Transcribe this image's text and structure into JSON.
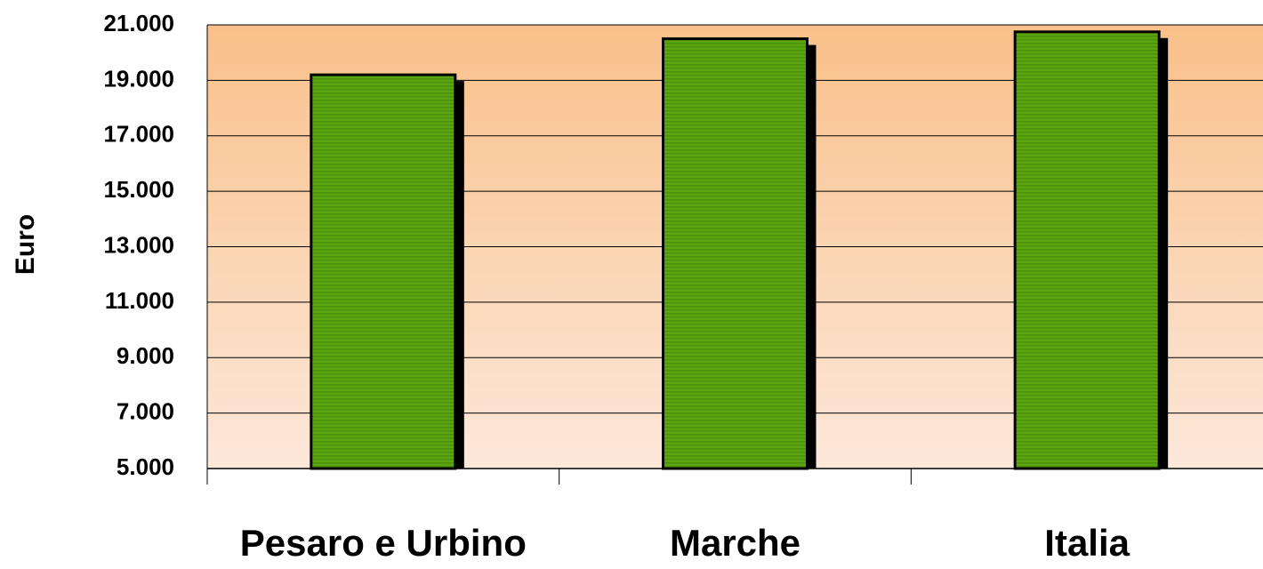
{
  "chart_data": {
    "type": "bar",
    "y_label": "Euro",
    "categories": [
      "Pesaro e Urbino",
      "Marche",
      "Italia"
    ],
    "values": [
      19200,
      20500,
      20750
    ],
    "color": "#5aa510",
    "ylim": [
      5000,
      21000
    ],
    "yticks": [
      {
        "value": 5000,
        "label": "5.000"
      },
      {
        "value": 7000,
        "label": "7.000"
      },
      {
        "value": 9000,
        "label": "9.000"
      },
      {
        "value": 11000,
        "label": "11.000"
      },
      {
        "value": 13000,
        "label": "13.000"
      },
      {
        "value": 15000,
        "label": "15.000"
      },
      {
        "value": 17000,
        "label": "17.000"
      },
      {
        "value": 19000,
        "label": "19.000"
      },
      {
        "value": 21000,
        "label": "21.000"
      }
    ],
    "grid": true
  }
}
